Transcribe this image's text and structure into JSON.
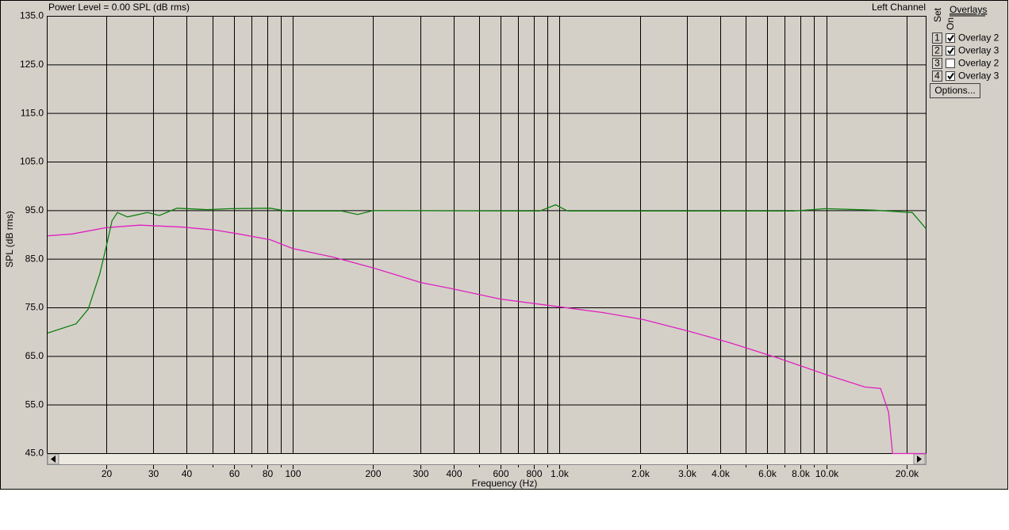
{
  "chart_data": {
    "type": "line",
    "title": "Power Level = 0.00 SPL (dB rms)",
    "subtitle": "Left Channel",
    "x_label": "Frequency (Hz)",
    "y_label": "SPL (dB rms)",
    "x_scale": "log",
    "grid": true,
    "xlim": [
      12,
      23700
    ],
    "ylim": [
      45,
      135
    ],
    "yticks": [
      {
        "value": 45,
        "label": "45.0"
      },
      {
        "value": 55,
        "label": "55.0"
      },
      {
        "value": 65,
        "label": "65.0"
      },
      {
        "value": 75,
        "label": "75.0"
      },
      {
        "value": 85,
        "label": "85.0"
      },
      {
        "value": 95,
        "label": "95.0"
      },
      {
        "value": 105,
        "label": "105.0"
      },
      {
        "value": 115,
        "label": "115.0"
      },
      {
        "value": 125,
        "label": "125.0"
      },
      {
        "value": 135,
        "label": "135.0"
      }
    ],
    "xticks": [
      20,
      30,
      40,
      60,
      80,
      100,
      200,
      300,
      400,
      600,
      800,
      {
        "value": 1000,
        "label": "1.0k"
      },
      {
        "value": 2000,
        "label": "2.0k"
      },
      {
        "value": 3000,
        "label": "3.0k"
      },
      {
        "value": 4000,
        "label": "4.0k"
      },
      {
        "value": 6000,
        "label": "6.0k"
      },
      {
        "value": 8000,
        "label": "8.0k"
      },
      {
        "value": 10000,
        "label": "10.0k"
      },
      {
        "value": 20000,
        "label": "20.0k"
      }
    ],
    "xminorticks": [
      50,
      70,
      90,
      500,
      700,
      900,
      5000,
      7000,
      9000
    ],
    "series": [
      {
        "color": "#e020c0",
        "x": [
          12.05,
          14.9,
          20,
          26.7,
          38.8,
          51.1,
          62.7,
          82.4,
          100,
          142.5,
          200.6,
          302,
          398,
          600,
          1000,
          1459,
          2055,
          3097,
          4362,
          6577,
          9910,
          13960,
          16000,
          17140,
          17740,
          23600
        ],
        "values": [
          89.8,
          90.2,
          91.5,
          92.0,
          91.6,
          91.0,
          90.2,
          89.0,
          87.2,
          85.4,
          83.2,
          80.2,
          78.9,
          76.8,
          75.2,
          74.0,
          72.6,
          70.1,
          67.8,
          64.7,
          61.3,
          58.7,
          58.4,
          53.5,
          45.0,
          45.0
        ]
      },
      {
        "color": "#108010",
        "x": [
          12.05,
          15.4,
          17.1,
          18.9,
          20,
          21.0,
          22.0,
          24.0,
          28.5,
          31.6,
          36.8,
          47.7,
          58.6,
          82.4,
          94.5,
          152.6,
          175,
          200.6,
          844,
          968,
          1073,
          7540,
          9910,
          14950,
          21040,
          23660
        ],
        "values": [
          69.8,
          71.7,
          74.7,
          82.0,
          87.7,
          92.9,
          94.6,
          93.7,
          94.6,
          94.0,
          95.5,
          95.2,
          95.4,
          95.5,
          94.9,
          94.9,
          94.2,
          95.0,
          94.9,
          96.2,
          94.9,
          94.9,
          95.4,
          95.1,
          94.6,
          91.3
        ]
      }
    ],
    "overlays_title": "Overlays",
    "set_label": "Set",
    "on_label": "On",
    "options_label": "Options...",
    "legend": [
      {
        "set": "1",
        "name": "Overlay 2",
        "color": "#e00000",
        "checked": true
      },
      {
        "set": "2",
        "name": "Overlay 3",
        "color": "#e020e0",
        "checked": true
      },
      {
        "set": "3",
        "name": "Overlay 2",
        "color": "#2020e0",
        "checked": false
      },
      {
        "set": "4",
        "name": "Overlay 3",
        "color": "#108010",
        "checked": true
      }
    ]
  }
}
